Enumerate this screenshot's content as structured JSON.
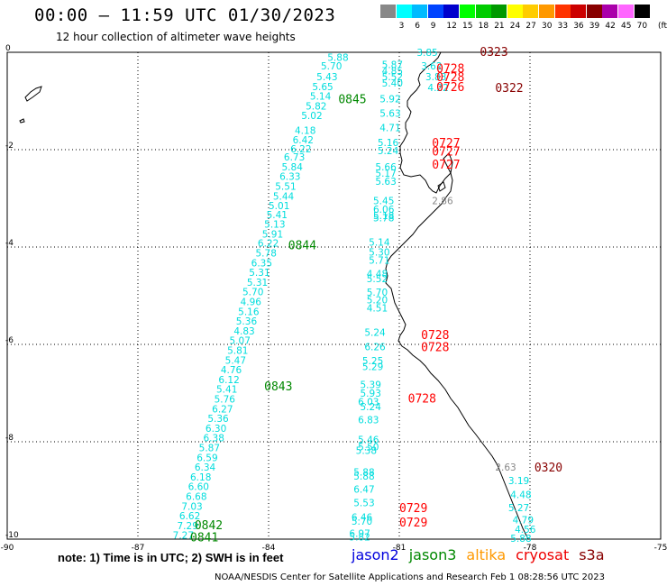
{
  "header": {
    "title": "00:00 — 11:59 UTC 01/30/2023",
    "subtitle": "12 hour collection of altimeter wave heights"
  },
  "legend": {
    "unit": "(ft)",
    "bins": [
      {
        "label": "",
        "color": "#888888"
      },
      {
        "label": "3",
        "color": "#00ffff"
      },
      {
        "label": "6",
        "color": "#00bbff"
      },
      {
        "label": "9",
        "color": "#0044ff"
      },
      {
        "label": "12",
        "color": "#0000cc"
      },
      {
        "label": "15",
        "color": "#00ff00"
      },
      {
        "label": "18",
        "color": "#00cc00"
      },
      {
        "label": "21",
        "color": "#009900"
      },
      {
        "label": "24",
        "color": "#ffff00"
      },
      {
        "label": "27",
        "color": "#ffcc00"
      },
      {
        "label": "30",
        "color": "#ff9900"
      },
      {
        "label": "33",
        "color": "#ff3300"
      },
      {
        "label": "36",
        "color": "#cc0000"
      },
      {
        "label": "39",
        "color": "#880000"
      },
      {
        "label": "42",
        "color": "#aa00aa"
      },
      {
        "label": "45",
        "color": "#ff66ff"
      },
      {
        "label": "70",
        "color": "#000000"
      }
    ]
  },
  "map": {
    "lon_range": [
      -90,
      -75
    ],
    "lat_range": [
      -10,
      0
    ],
    "lon_ticks": [
      "-90",
      "-87",
      "-84",
      "-81",
      "-78",
      "-75"
    ],
    "lat_ticks": [
      "0",
      "-2",
      "-4",
      "-6",
      "-8",
      "-10"
    ],
    "colors": {
      "cyan": "#00dddd",
      "gray": "#888888",
      "red": "#ff0000",
      "green": "#008800",
      "maroon": "#880000"
    },
    "passes": [
      {
        "label": "0845",
        "lon": -82.4,
        "lat": -0.95,
        "color": "#008800"
      },
      {
        "label": "0844",
        "lon": -83.55,
        "lat": -3.95,
        "color": "#008800"
      },
      {
        "label": "0843",
        "lon": -84.1,
        "lat": -6.85,
        "color": "#008800"
      },
      {
        "label": "0842",
        "lon": -85.7,
        "lat": -9.7,
        "color": "#008800"
      },
      {
        "label": "0841",
        "lon": -85.8,
        "lat": -9.95,
        "color": "#008800"
      },
      {
        "label": "0323",
        "lon": -79.15,
        "lat": 0.02,
        "color": "#880000"
      },
      {
        "label": "0322",
        "lon": -78.8,
        "lat": -0.72,
        "color": "#880000"
      },
      {
        "label": "0320",
        "lon": -77.9,
        "lat": -8.52,
        "color": "#880000"
      },
      {
        "label": "0728",
        "lon": -80.15,
        "lat": -0.32,
        "color": "#ff0000"
      },
      {
        "label": "0728",
        "lon": -80.15,
        "lat": -0.5,
        "color": "#ff0000"
      },
      {
        "label": "0726",
        "lon": -80.15,
        "lat": -0.7,
        "color": "#ff0000"
      },
      {
        "label": "0727",
        "lon": -80.25,
        "lat": -1.85,
        "color": "#ff0000"
      },
      {
        "label": "0727",
        "lon": -80.25,
        "lat": -2.03,
        "color": "#ff0000"
      },
      {
        "label": "0727",
        "lon": -80.25,
        "lat": -2.3,
        "color": "#ff0000"
      },
      {
        "label": "0728",
        "lon": -80.5,
        "lat": -5.8,
        "color": "#ff0000"
      },
      {
        "label": "0728",
        "lon": -80.5,
        "lat": -6.05,
        "color": "#ff0000"
      },
      {
        "label": "0728",
        "lon": -80.8,
        "lat": -7.1,
        "color": "#ff0000"
      },
      {
        "label": "0729",
        "lon": -81.0,
        "lat": -9.35,
        "color": "#ff0000"
      },
      {
        "label": "0729",
        "lon": -81.0,
        "lat": -9.65,
        "color": "#ff0000"
      }
    ],
    "obs": [
      {
        "v": "5.88",
        "lon": -82.65,
        "lat": -0.1,
        "c": "#00dddd"
      },
      {
        "v": "5.70",
        "lon": -82.8,
        "lat": -0.28,
        "c": "#00dddd"
      },
      {
        "v": "5.43",
        "lon": -82.9,
        "lat": -0.5,
        "c": "#00dddd"
      },
      {
        "v": "5.65",
        "lon": -83.0,
        "lat": -0.7,
        "c": "#00dddd"
      },
      {
        "v": "5.14",
        "lon": -83.05,
        "lat": -0.9,
        "c": "#00dddd"
      },
      {
        "v": "5.82",
        "lon": -83.15,
        "lat": -1.1,
        "c": "#00dddd"
      },
      {
        "v": "5.02",
        "lon": -83.25,
        "lat": -1.3,
        "c": "#00dddd"
      },
      {
        "v": "4.18",
        "lon": -83.4,
        "lat": -1.6,
        "c": "#00dddd"
      },
      {
        "v": "6.42",
        "lon": -83.45,
        "lat": -1.8,
        "c": "#00dddd"
      },
      {
        "v": "6.22",
        "lon": -83.5,
        "lat": -1.98,
        "c": "#00dddd"
      },
      {
        "v": "6.73",
        "lon": -83.65,
        "lat": -2.15,
        "c": "#00dddd"
      },
      {
        "v": "5.84",
        "lon": -83.7,
        "lat": -2.35,
        "c": "#00dddd"
      },
      {
        "v": "6.33",
        "lon": -83.75,
        "lat": -2.55,
        "c": "#00dddd"
      },
      {
        "v": "5.51",
        "lon": -83.85,
        "lat": -2.75,
        "c": "#00dddd"
      },
      {
        "v": "5.44",
        "lon": -83.9,
        "lat": -2.95,
        "c": "#00dddd"
      },
      {
        "v": "5.01",
        "lon": -84.0,
        "lat": -3.15,
        "c": "#00dddd"
      },
      {
        "v": "5.41",
        "lon": -84.05,
        "lat": -3.33,
        "c": "#00dddd"
      },
      {
        "v": "5.13",
        "lon": -84.1,
        "lat": -3.53,
        "c": "#00dddd"
      },
      {
        "v": "5.91",
        "lon": -84.15,
        "lat": -3.73,
        "c": "#00dddd"
      },
      {
        "v": "6.22",
        "lon": -84.25,
        "lat": -3.92,
        "c": "#00dddd"
      },
      {
        "v": "5.78",
        "lon": -84.3,
        "lat": -4.12,
        "c": "#00dddd"
      },
      {
        "v": "6.35",
        "lon": -84.4,
        "lat": -4.32,
        "c": "#00dddd"
      },
      {
        "v": "5.31",
        "lon": -84.45,
        "lat": -4.52,
        "c": "#00dddd"
      },
      {
        "v": "5.31",
        "lon": -84.5,
        "lat": -4.72,
        "c": "#00dddd"
      },
      {
        "v": "5.70",
        "lon": -84.6,
        "lat": -4.92,
        "c": "#00dddd"
      },
      {
        "v": "4.96",
        "lon": -84.65,
        "lat": -5.12,
        "c": "#00dddd"
      },
      {
        "v": "5.16",
        "lon": -84.7,
        "lat": -5.32,
        "c": "#00dddd"
      },
      {
        "v": "5.36",
        "lon": -84.75,
        "lat": -5.52,
        "c": "#00dddd"
      },
      {
        "v": "4.83",
        "lon": -84.8,
        "lat": -5.72,
        "c": "#00dddd"
      },
      {
        "v": "5.07",
        "lon": -84.9,
        "lat": -5.92,
        "c": "#00dddd"
      },
      {
        "v": "5.81",
        "lon": -84.95,
        "lat": -6.12,
        "c": "#00dddd"
      },
      {
        "v": "5.47",
        "lon": -85.0,
        "lat": -6.32,
        "c": "#00dddd"
      },
      {
        "v": "4.76",
        "lon": -85.1,
        "lat": -6.52,
        "c": "#00dddd"
      },
      {
        "v": "6.12",
        "lon": -85.15,
        "lat": -6.72,
        "c": "#00dddd"
      },
      {
        "v": "5.41",
        "lon": -85.2,
        "lat": -6.92,
        "c": "#00dddd"
      },
      {
        "v": "5.76",
        "lon": -85.25,
        "lat": -7.12,
        "c": "#00dddd"
      },
      {
        "v": "6.27",
        "lon": -85.3,
        "lat": -7.32,
        "c": "#00dddd"
      },
      {
        "v": "5.36",
        "lon": -85.4,
        "lat": -7.52,
        "c": "#00dddd"
      },
      {
        "v": "6.30",
        "lon": -85.45,
        "lat": -7.72,
        "c": "#00dddd"
      },
      {
        "v": "6.38",
        "lon": -85.5,
        "lat": -7.92,
        "c": "#00dddd"
      },
      {
        "v": "5.87",
        "lon": -85.6,
        "lat": -8.12,
        "c": "#00dddd"
      },
      {
        "v": "6.59",
        "lon": -85.65,
        "lat": -8.32,
        "c": "#00dddd"
      },
      {
        "v": "6.34",
        "lon": -85.7,
        "lat": -8.52,
        "c": "#00dddd"
      },
      {
        "v": "6.18",
        "lon": -85.8,
        "lat": -8.72,
        "c": "#00dddd"
      },
      {
        "v": "6.60",
        "lon": -85.85,
        "lat": -8.92,
        "c": "#00dddd"
      },
      {
        "v": "6.68",
        "lon": -85.9,
        "lat": -9.12,
        "c": "#00dddd"
      },
      {
        "v": "7.03",
        "lon": -86.0,
        "lat": -9.32,
        "c": "#00dddd"
      },
      {
        "v": "6.62",
        "lon": -86.05,
        "lat": -9.52,
        "c": "#00dddd"
      },
      {
        "v": "7.29",
        "lon": -86.1,
        "lat": -9.72,
        "c": "#00dddd"
      },
      {
        "v": "7.27",
        "lon": -86.2,
        "lat": -9.92,
        "c": "#00dddd"
      },
      {
        "v": "3.85",
        "lon": -80.6,
        "lat": 0.0,
        "c": "#00dddd"
      },
      {
        "v": "5.87",
        "lon": -81.4,
        "lat": -0.25,
        "c": "#00dddd"
      },
      {
        "v": "4.85",
        "lon": -81.4,
        "lat": -0.38,
        "c": "#00dddd"
      },
      {
        "v": "5.52",
        "lon": -81.4,
        "lat": -0.5,
        "c": "#00dddd"
      },
      {
        "v": "5.40",
        "lon": -81.4,
        "lat": -0.63,
        "c": "#00dddd"
      },
      {
        "v": "5.92",
        "lon": -81.45,
        "lat": -0.95,
        "c": "#00dddd"
      },
      {
        "v": "5.63",
        "lon": -81.45,
        "lat": -1.25,
        "c": "#00dddd"
      },
      {
        "v": "4.71",
        "lon": -81.45,
        "lat": -1.55,
        "c": "#00dddd"
      },
      {
        "v": "5.16",
        "lon": -81.5,
        "lat": -1.85,
        "c": "#00dddd"
      },
      {
        "v": "5.24",
        "lon": -81.5,
        "lat": -2.02,
        "c": "#00dddd"
      },
      {
        "v": "5.66",
        "lon": -81.55,
        "lat": -2.35,
        "c": "#00dddd"
      },
      {
        "v": "5.17",
        "lon": -81.55,
        "lat": -2.48,
        "c": "#00dddd"
      },
      {
        "v": "5.63",
        "lon": -81.55,
        "lat": -2.65,
        "c": "#00dddd"
      },
      {
        "v": "5.45",
        "lon": -81.6,
        "lat": -3.05,
        "c": "#00dddd"
      },
      {
        "v": "6.06",
        "lon": -81.6,
        "lat": -3.22,
        "c": "#00dddd"
      },
      {
        "v": "5.18",
        "lon": -81.6,
        "lat": -3.35,
        "c": "#00dddd"
      },
      {
        "v": "5.78",
        "lon": -81.6,
        "lat": -3.4,
        "c": "#00dddd"
      },
      {
        "v": "5.14",
        "lon": -81.7,
        "lat": -3.9,
        "c": "#00dddd"
      },
      {
        "v": "5.30",
        "lon": -81.7,
        "lat": -4.1,
        "c": "#00dddd"
      },
      {
        "v": "5.71",
        "lon": -81.7,
        "lat": -4.27,
        "c": "#00dddd"
      },
      {
        "v": "4.48",
        "lon": -81.75,
        "lat": -4.55,
        "c": "#00dddd"
      },
      {
        "v": "5.52",
        "lon": -81.75,
        "lat": -4.65,
        "c": "#00dddd"
      },
      {
        "v": "5.70",
        "lon": -81.75,
        "lat": -4.93,
        "c": "#00dddd"
      },
      {
        "v": "5.20",
        "lon": -81.75,
        "lat": -5.08,
        "c": "#00dddd"
      },
      {
        "v": "4.51",
        "lon": -81.75,
        "lat": -5.25,
        "c": "#00dddd"
      },
      {
        "v": "5.24",
        "lon": -81.8,
        "lat": -5.75,
        "c": "#00dddd"
      },
      {
        "v": "6.26",
        "lon": -81.8,
        "lat": -6.05,
        "c": "#00dddd"
      },
      {
        "v": "5.25",
        "lon": -81.85,
        "lat": -6.33,
        "c": "#00dddd"
      },
      {
        "v": "5.29",
        "lon": -81.85,
        "lat": -6.45,
        "c": "#00dddd"
      },
      {
        "v": "5.39",
        "lon": -81.9,
        "lat": -6.82,
        "c": "#00dddd"
      },
      {
        "v": "5.93",
        "lon": -81.9,
        "lat": -7.0,
        "c": "#00dddd"
      },
      {
        "v": "6.03",
        "lon": -81.95,
        "lat": -7.18,
        "c": "#00dddd"
      },
      {
        "v": "5.24",
        "lon": -81.9,
        "lat": -7.28,
        "c": "#00dddd"
      },
      {
        "v": "6.83",
        "lon": -81.95,
        "lat": -7.55,
        "c": "#00dddd"
      },
      {
        "v": "5.46",
        "lon": -81.95,
        "lat": -7.95,
        "c": "#00dddd"
      },
      {
        "v": "5.50",
        "lon": -81.95,
        "lat": -8.1,
        "c": "#00dddd"
      },
      {
        "v": "5.38",
        "lon": -82.0,
        "lat": -8.18,
        "c": "#00dddd"
      },
      {
        "v": "5.88",
        "lon": -82.05,
        "lat": -8.62,
        "c": "#00dddd"
      },
      {
        "v": "5.88",
        "lon": -82.05,
        "lat": -8.7,
        "c": "#00dddd"
      },
      {
        "v": "6.47",
        "lon": -82.05,
        "lat": -8.97,
        "c": "#00dddd"
      },
      {
        "v": "5.53",
        "lon": -82.05,
        "lat": -9.25,
        "c": "#00dddd"
      },
      {
        "v": "6.46",
        "lon": -82.1,
        "lat": -9.55,
        "c": "#00dddd"
      },
      {
        "v": "5.70",
        "lon": -82.1,
        "lat": -9.63,
        "c": "#00dddd"
      },
      {
        "v": "6.97",
        "lon": -82.15,
        "lat": -9.88,
        "c": "#00dddd"
      },
      {
        "v": "5.82",
        "lon": -82.15,
        "lat": -9.95,
        "c": "#00dddd"
      },
      {
        "v": "3.62",
        "lon": -80.5,
        "lat": -0.28,
        "c": "#00dddd"
      },
      {
        "v": "3.83",
        "lon": -80.4,
        "lat": -0.5,
        "c": "#00dddd"
      },
      {
        "v": "4.22",
        "lon": -80.35,
        "lat": -0.72,
        "c": "#00dddd"
      },
      {
        "v": "2.86",
        "lon": -80.25,
        "lat": -3.05,
        "c": "#888888"
      },
      {
        "v": "2.63",
        "lon": -78.8,
        "lat": -8.52,
        "c": "#888888"
      },
      {
        "v": "3.19",
        "lon": -78.5,
        "lat": -8.8,
        "c": "#00dddd"
      },
      {
        "v": "4.48",
        "lon": -78.45,
        "lat": -9.08,
        "c": "#00dddd"
      },
      {
        "v": "5.27",
        "lon": -78.5,
        "lat": -9.35,
        "c": "#00dddd"
      },
      {
        "v": "4.79",
        "lon": -78.4,
        "lat": -9.6,
        "c": "#00dddd"
      },
      {
        "v": "4.56",
        "lon": -78.35,
        "lat": -9.8,
        "c": "#00dddd"
      },
      {
        "v": "5.88",
        "lon": -78.45,
        "lat": -9.98,
        "c": "#00dddd"
      }
    ]
  },
  "footer": {
    "note": "note: 1) Time is in UTC; 2) SWH is in feet",
    "satellites": [
      {
        "name": "jason2",
        "color": "#0000dd"
      },
      {
        "name": "jason3",
        "color": "#008800"
      },
      {
        "name": "altika",
        "color": "#ff9900"
      },
      {
        "name": "cryosat",
        "color": "#ee0000"
      },
      {
        "name": "s3a",
        "color": "#880000"
      }
    ],
    "credit": "NOAA/NESDIS Center for Satellite Applications and Research    Feb  1 08:28:56 UTC 2023"
  }
}
